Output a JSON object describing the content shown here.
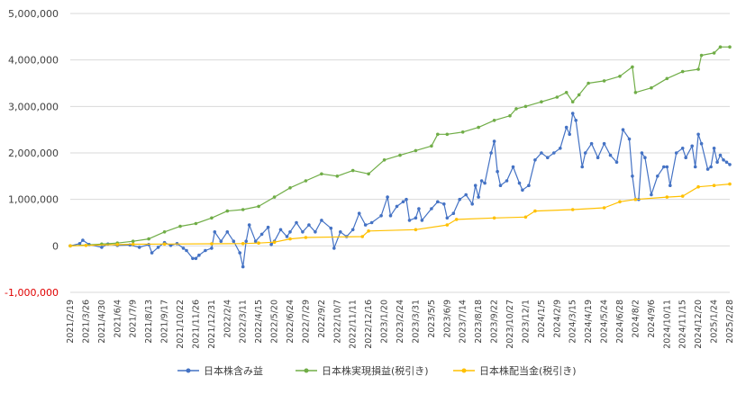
{
  "colors": {
    "unrealized": "#4472c4",
    "realized": "#70ad47",
    "dividend": "#ffc000",
    "grid": "#d9d9d9",
    "negative_label": "#e00000"
  },
  "chart_data": {
    "type": "line",
    "ylim": [
      -1000000,
      5000000
    ],
    "yticks": [
      -1000000,
      0,
      1000000,
      2000000,
      3000000,
      4000000,
      5000000
    ],
    "ytick_labels": [
      "-1,000,000",
      "0",
      "1,000,000",
      "2,000,000",
      "3,000,000",
      "4,000,000",
      "5,000,000"
    ],
    "grid": "horizontal",
    "legend_position": "bottom",
    "x_date_range": [
      "2021/2/19",
      "2025/2/28"
    ],
    "xtick_labels": [
      "2021/2/19",
      "2021/3/26",
      "2021/4/30",
      "2021/6/4",
      "2021/7/9",
      "2021/8/13",
      "2021/9/17",
      "2021/10/22",
      "2021/11/26",
      "2021/12/31",
      "2022/2/4",
      "2022/3/11",
      "2022/4/15",
      "2022/5/20",
      "2022/6/24",
      "2022/7/29",
      "2022/9/2",
      "2022/10/7",
      "2022/11/11",
      "2022/12/16",
      "2023/1/20",
      "2023/2/24",
      "2023/3/31",
      "2023/5/5",
      "2023/6/9",
      "2023/7/14",
      "2023/8/18",
      "2023/9/22",
      "2023/10/27",
      "2023/12/1",
      "2024/1/5",
      "2024/2/9",
      "2024/3/15",
      "2024/4/19",
      "2024/5/24",
      "2024/6/28",
      "2024/8/2",
      "2024/9/6",
      "2024/10/11",
      "2024/11/15",
      "2024/12/20",
      "2025/1/24",
      "2025/2/28"
    ],
    "series": [
      {
        "name": "日本株含み益",
        "key": "unrealized",
        "points": [
          [
            "2021/2/19",
            0
          ],
          [
            "2021/3/12",
            50000
          ],
          [
            "2021/3/19",
            120000
          ],
          [
            "2021/4/2",
            30000
          ],
          [
            "2021/4/30",
            -30000
          ],
          [
            "2021/5/14",
            40000
          ],
          [
            "2021/6/4",
            10000
          ],
          [
            "2021/7/2",
            20000
          ],
          [
            "2021/7/23",
            -30000
          ],
          [
            "2021/8/13",
            30000
          ],
          [
            "2021/8/20",
            -150000
          ],
          [
            "2021/9/3",
            -30000
          ],
          [
            "2021/9/17",
            70000
          ],
          [
            "2021/10/1",
            10000
          ],
          [
            "2021/10/15",
            50000
          ],
          [
            "2021/10/29",
            -50000
          ],
          [
            "2021/11/5",
            -100000
          ],
          [
            "2021/11/19",
            -270000
          ],
          [
            "2021/11/26",
            -270000
          ],
          [
            "2021/12/3",
            -200000
          ],
          [
            "2021/12/17",
            -100000
          ],
          [
            "2021/12/31",
            -50000
          ],
          [
            "2022/1/7",
            300000
          ],
          [
            "2022/1/21",
            100000
          ],
          [
            "2022/2/4",
            300000
          ],
          [
            "2022/2/18",
            100000
          ],
          [
            "2022/3/4",
            -150000
          ],
          [
            "2022/3/11",
            -450000
          ],
          [
            "2022/3/18",
            100000
          ],
          [
            "2022/3/25",
            450000
          ],
          [
            "2022/4/8",
            100000
          ],
          [
            "2022/4/22",
            250000
          ],
          [
            "2022/5/6",
            400000
          ],
          [
            "2022/5/13",
            30000
          ],
          [
            "2022/5/20",
            100000
          ],
          [
            "2022/6/3",
            350000
          ],
          [
            "2022/6/17",
            200000
          ],
          [
            "2022/6/24",
            300000
          ],
          [
            "2022/7/8",
            500000
          ],
          [
            "2022/7/22",
            300000
          ],
          [
            "2022/8/5",
            450000
          ],
          [
            "2022/8/19",
            300000
          ],
          [
            "2022/9/2",
            550000
          ],
          [
            "2022/9/23",
            380000
          ],
          [
            "2022/9/30",
            -50000
          ],
          [
            "2022/10/14",
            300000
          ],
          [
            "2022/10/28",
            200000
          ],
          [
            "2022/11/11",
            350000
          ],
          [
            "2022/11/25",
            700000
          ],
          [
            "2022/12/9",
            450000
          ],
          [
            "2022/12/23",
            500000
          ],
          [
            "2023/1/13",
            650000
          ],
          [
            "2023/1/27",
            1050000
          ],
          [
            "2023/2/3",
            650000
          ],
          [
            "2023/2/17",
            850000
          ],
          [
            "2023/3/3",
            950000
          ],
          [
            "2023/3/10",
            1000000
          ],
          [
            "2023/3/17",
            550000
          ],
          [
            "2023/3/31",
            600000
          ],
          [
            "2023/4/7",
            800000
          ],
          [
            "2023/4/14",
            550000
          ],
          [
            "2023/5/5",
            800000
          ],
          [
            "2023/5/19",
            950000
          ],
          [
            "2023/6/2",
            900000
          ],
          [
            "2023/6/9",
            600000
          ],
          [
            "2023/6/23",
            700000
          ],
          [
            "2023/7/7",
            1000000
          ],
          [
            "2023/7/21",
            1100000
          ],
          [
            "2023/8/4",
            900000
          ],
          [
            "2023/8/11",
            1300000
          ],
          [
            "2023/8/18",
            1050000
          ],
          [
            "2023/8/25",
            1400000
          ],
          [
            "2023/9/1",
            1350000
          ],
          [
            "2023/9/15",
            2000000
          ],
          [
            "2023/9/22",
            2250000
          ],
          [
            "2023/9/29",
            1600000
          ],
          [
            "2023/10/6",
            1300000
          ],
          [
            "2023/10/20",
            1400000
          ],
          [
            "2023/11/3",
            1700000
          ],
          [
            "2023/11/17",
            1350000
          ],
          [
            "2023/11/24",
            1200000
          ],
          [
            "2023/12/8",
            1300000
          ],
          [
            "2023/12/22",
            1850000
          ],
          [
            "2024/1/5",
            2000000
          ],
          [
            "2024/1/19",
            1900000
          ],
          [
            "2024/2/2",
            2000000
          ],
          [
            "2024/2/16",
            2100000
          ],
          [
            "2024/3/1",
            2550000
          ],
          [
            "2024/3/8",
            2400000
          ],
          [
            "2024/3/15",
            2850000
          ],
          [
            "2024/3/22",
            2700000
          ],
          [
            "2024/4/5",
            1700000
          ],
          [
            "2024/4/12",
            2000000
          ],
          [
            "2024/4/26",
            2200000
          ],
          [
            "2024/5/10",
            1900000
          ],
          [
            "2024/5/24",
            2200000
          ],
          [
            "2024/6/7",
            1950000
          ],
          [
            "2024/6/21",
            1800000
          ],
          [
            "2024/7/5",
            2500000
          ],
          [
            "2024/7/19",
            2300000
          ],
          [
            "2024/7/26",
            1500000
          ],
          [
            "2024/8/2",
            1000000
          ],
          [
            "2024/8/9",
            1000000
          ],
          [
            "2024/8/16",
            2000000
          ],
          [
            "2024/8/23",
            1900000
          ],
          [
            "2024/9/6",
            1100000
          ],
          [
            "2024/9/20",
            1500000
          ],
          [
            "2024/10/4",
            1700000
          ],
          [
            "2024/10/11",
            1700000
          ],
          [
            "2024/10/18",
            1300000
          ],
          [
            "2024/11/1",
            2000000
          ],
          [
            "2024/11/15",
            2100000
          ],
          [
            "2024/11/22",
            1900000
          ],
          [
            "2024/12/6",
            2150000
          ],
          [
            "2024/12/13",
            1700000
          ],
          [
            "2024/12/20",
            2400000
          ],
          [
            "2024/12/27",
            2200000
          ],
          [
            "2025/1/10",
            1650000
          ],
          [
            "2025/1/17",
            1700000
          ],
          [
            "2025/1/24",
            2100000
          ],
          [
            "2025/1/31",
            1800000
          ],
          [
            "2025/2/7",
            1950000
          ],
          [
            "2025/2/14",
            1850000
          ],
          [
            "2025/2/21",
            1800000
          ],
          [
            "2025/2/28",
            1750000
          ]
        ]
      },
      {
        "name": "日本株実現損益(税引き)",
        "key": "realized",
        "points": [
          [
            "2021/2/19",
            0
          ],
          [
            "2021/4/30",
            40000
          ],
          [
            "2021/6/4",
            60000
          ],
          [
            "2021/7/9",
            100000
          ],
          [
            "2021/8/13",
            150000
          ],
          [
            "2021/9/17",
            300000
          ],
          [
            "2021/10/22",
            420000
          ],
          [
            "2021/11/26",
            480000
          ],
          [
            "2021/12/31",
            600000
          ],
          [
            "2022/2/4",
            750000
          ],
          [
            "2022/3/11",
            780000
          ],
          [
            "2022/4/15",
            850000
          ],
          [
            "2022/5/20",
            1050000
          ],
          [
            "2022/6/24",
            1250000
          ],
          [
            "2022/7/29",
            1400000
          ],
          [
            "2022/9/2",
            1550000
          ],
          [
            "2022/10/7",
            1500000
          ],
          [
            "2022/11/11",
            1620000
          ],
          [
            "2022/12/16",
            1550000
          ],
          [
            "2023/1/20",
            1850000
          ],
          [
            "2023/2/24",
            1950000
          ],
          [
            "2023/3/31",
            2050000
          ],
          [
            "2023/5/5",
            2150000
          ],
          [
            "2023/5/19",
            2400000
          ],
          [
            "2023/6/9",
            2400000
          ],
          [
            "2023/7/14",
            2450000
          ],
          [
            "2023/8/18",
            2550000
          ],
          [
            "2023/9/22",
            2700000
          ],
          [
            "2023/10/27",
            2800000
          ],
          [
            "2023/11/10",
            2950000
          ],
          [
            "2023/12/1",
            3000000
          ],
          [
            "2024/1/5",
            3100000
          ],
          [
            "2024/2/9",
            3200000
          ],
          [
            "2024/3/1",
            3300000
          ],
          [
            "2024/3/15",
            3100000
          ],
          [
            "2024/3/29",
            3250000
          ],
          [
            "2024/4/19",
            3500000
          ],
          [
            "2024/5/24",
            3550000
          ],
          [
            "2024/6/28",
            3650000
          ],
          [
            "2024/7/26",
            3850000
          ],
          [
            "2024/8/2",
            3300000
          ],
          [
            "2024/9/6",
            3400000
          ],
          [
            "2024/10/11",
            3600000
          ],
          [
            "2024/11/15",
            3750000
          ],
          [
            "2024/12/20",
            3800000
          ],
          [
            "2024/12/27",
            4100000
          ],
          [
            "2025/1/24",
            4150000
          ],
          [
            "2025/2/7",
            4280000
          ],
          [
            "2025/2/28",
            4280000
          ]
        ]
      },
      {
        "name": "日本株配当金(税引き)",
        "key": "dividend",
        "points": [
          [
            "2021/2/19",
            0
          ],
          [
            "2021/3/26",
            10000
          ],
          [
            "2021/6/4",
            30000
          ],
          [
            "2021/7/9",
            35000
          ],
          [
            "2021/9/17",
            40000
          ],
          [
            "2021/12/31",
            45000
          ],
          [
            "2022/3/11",
            50000
          ],
          [
            "2022/4/15",
            60000
          ],
          [
            "2022/5/20",
            80000
          ],
          [
            "2022/6/24",
            150000
          ],
          [
            "2022/7/29",
            180000
          ],
          [
            "2022/12/2",
            200000
          ],
          [
            "2022/12/16",
            320000
          ],
          [
            "2023/3/31",
            350000
          ],
          [
            "2023/6/9",
            450000
          ],
          [
            "2023/6/30",
            570000
          ],
          [
            "2023/9/22",
            600000
          ],
          [
            "2023/12/1",
            620000
          ],
          [
            "2023/12/22",
            750000
          ],
          [
            "2024/3/15",
            780000
          ],
          [
            "2024/5/24",
            820000
          ],
          [
            "2024/6/28",
            950000
          ],
          [
            "2024/8/2",
            1000000
          ],
          [
            "2024/10/11",
            1050000
          ],
          [
            "2024/11/15",
            1070000
          ],
          [
            "2024/12/20",
            1270000
          ],
          [
            "2025/1/24",
            1300000
          ],
          [
            "2025/2/28",
            1330000
          ]
        ]
      }
    ]
  }
}
